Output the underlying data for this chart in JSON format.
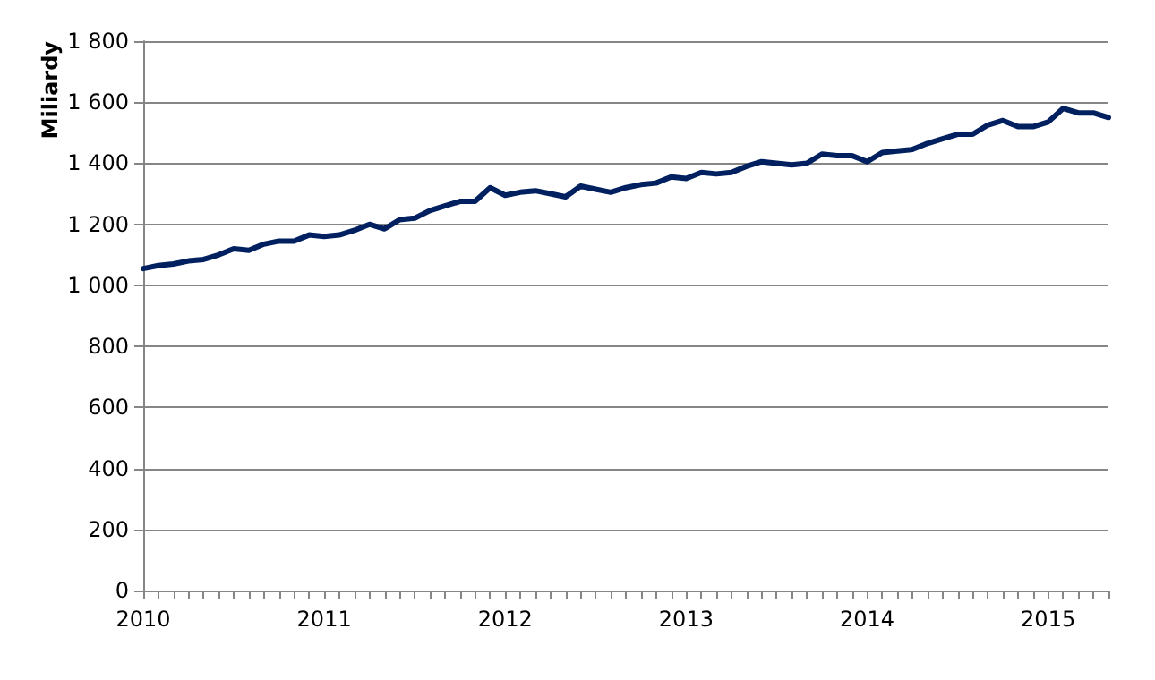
{
  "chart_data": {
    "type": "line",
    "ylabel": "Miliardy",
    "categories": [
      "2010",
      null,
      null,
      null,
      null,
      null,
      null,
      null,
      null,
      null,
      null,
      null,
      "2011",
      null,
      null,
      null,
      null,
      null,
      null,
      null,
      null,
      null,
      null,
      null,
      "2012",
      null,
      null,
      null,
      null,
      null,
      null,
      null,
      null,
      null,
      null,
      null,
      "2013",
      null,
      null,
      null,
      null,
      null,
      null,
      null,
      null,
      null,
      null,
      null,
      "2014",
      null,
      null,
      null,
      null,
      null,
      null,
      null,
      null,
      null,
      null,
      null,
      "2015",
      null,
      null,
      null,
      null
    ],
    "series": [
      {
        "color": "#002060",
        "values": [
          1055,
          1065,
          1070,
          1080,
          1085,
          1100,
          1120,
          1115,
          1135,
          1145,
          1145,
          1165,
          1160,
          1165,
          1180,
          1200,
          1185,
          1215,
          1220,
          1245,
          1260,
          1275,
          1275,
          1320,
          1295,
          1305,
          1310,
          1300,
          1290,
          1325,
          1315,
          1305,
          1320,
          1330,
          1335,
          1355,
          1350,
          1370,
          1365,
          1370,
          1390,
          1405,
          1400,
          1395,
          1400,
          1430,
          1425,
          1425,
          1405,
          1435,
          1440,
          1445,
          1465,
          1480,
          1495,
          1495,
          1525,
          1540,
          1520,
          1520,
          1535,
          1580,
          1565,
          1565,
          1550
        ]
      }
    ],
    "ylim": [
      0,
      1800
    ],
    "yticks": [
      0,
      200,
      400,
      600,
      800,
      {
        "value": 1000,
        "label": "1 000"
      },
      {
        "value": 1200,
        "label": "1 200"
      },
      {
        "value": 1400,
        "label": "1 400"
      },
      {
        "value": 1600,
        "label": "1 600"
      },
      {
        "value": 1800,
        "label": "1 800"
      }
    ],
    "grid": "y",
    "marker": "none",
    "line_style": "solid"
  }
}
